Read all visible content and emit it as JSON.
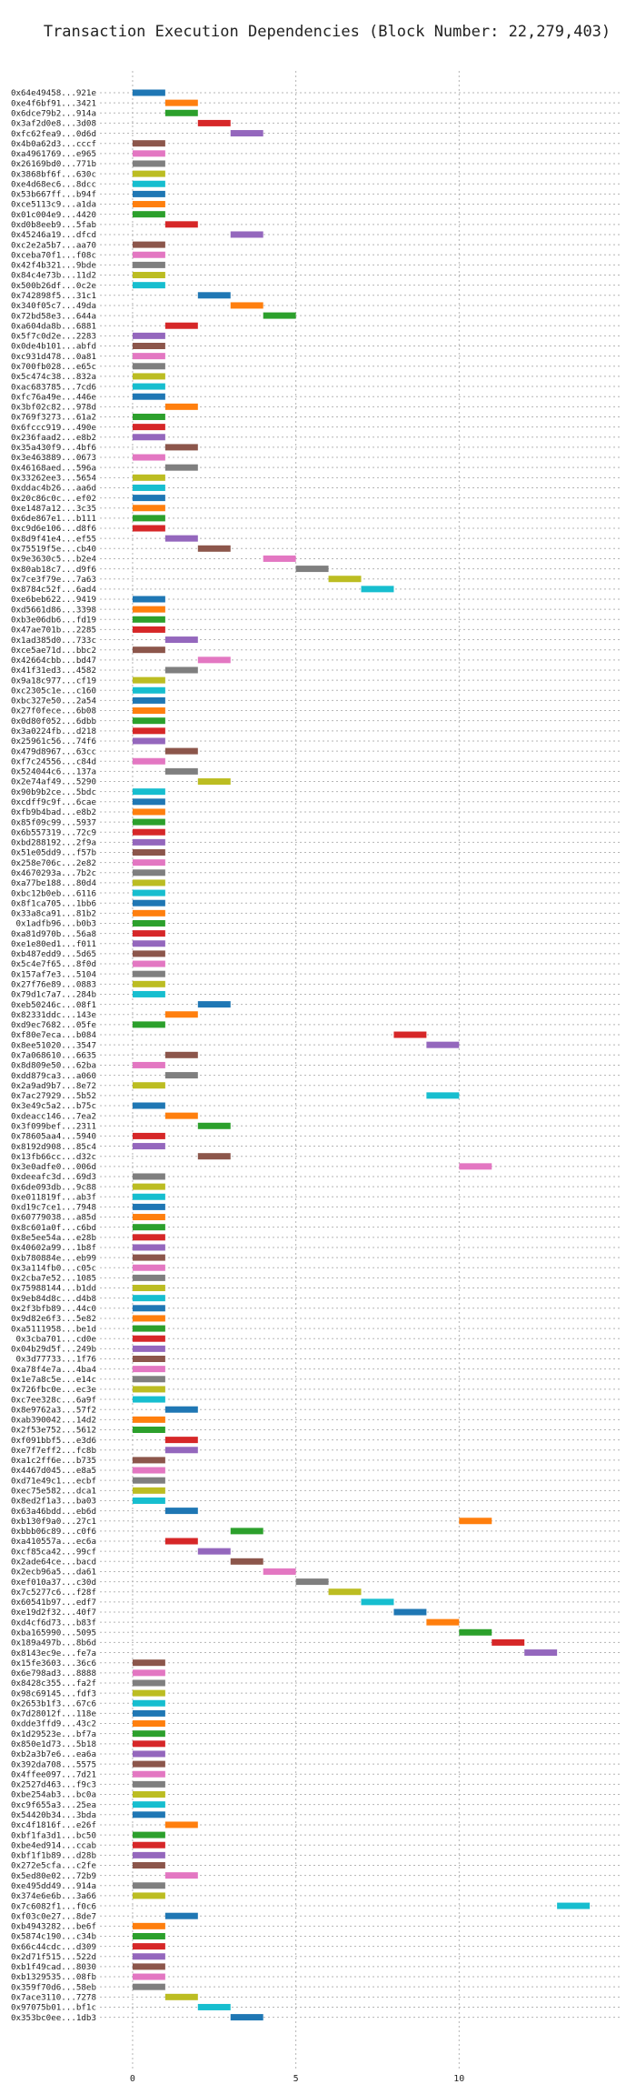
{
  "chart_data": {
    "type": "bar",
    "orientation": "horizontal",
    "title": "Transaction Execution Dependencies (Block Number: 22,279,403)",
    "xlabel": "",
    "ylabel": "",
    "xlim": [
      -1,
      15
    ],
    "xticks": [
      0,
      5,
      10
    ],
    "grid": "dotted",
    "bar_width": 1,
    "palette": [
      "#1f77b4",
      "#ff7f0e",
      "#2ca02c",
      "#d62728",
      "#9467bd",
      "#8c564b",
      "#e377c2",
      "#7f7f7f",
      "#bcbd22",
      "#17becf"
    ],
    "categories": [
      "0x64e49458...921e",
      "0xe4f6bf91...3421",
      "0x6dce79b2...914a",
      "0x3af2d0e8...3d08",
      "0xfc62fea9...0d6d",
      "0x4b0a62d3...cccf",
      "0xa4961769...e965",
      "0x26169bd0...771b",
      "0x3868bf6f...630c",
      "0xe4d68ec6...8dcc",
      "0x53b667ff...b94f",
      "0xce5113c9...a1da",
      "0x01c004e9...4420",
      "0xd0b8eeb9...5fab",
      "0x45246a19...dfcd",
      "0xc2e2a5b7...aa70",
      "0xceba70f1...f08c",
      "0x42f4b321...9bde",
      "0x84c4e73b...11d2",
      "0x500b26df...0c2e",
      "0x742898f5...31c1",
      "0x340f05c7...49da",
      "0x72bd58e3...644a",
      "0xa604da8b...6881",
      "0x5f7c0d2e...2283",
      "0x0de4b101...abfd",
      "0xc931d478...0a81",
      "0x700fb028...e65c",
      "0x5c474c38...832a",
      "0xac683785...7cd6",
      "0xfc76a49e...446e",
      "0x3bf02c82...978d",
      "0x769f3273...61a2",
      "0x6fccc919...490e",
      "0x236faad2...e8b2",
      "0x35a430f9...4bf6",
      "0x3e463889...0673",
      "0x46168aed...596a",
      "0x33262ee3...5654",
      "0xddac4b26...aa6d",
      "0x20c86c0c...ef02",
      "0xe1487a12...3c35",
      "0x6de867e1...b111",
      "0xc9d6e106...d8f6",
      "0x8d9f41e4...ef55",
      "0x75519f5e...cb40",
      "0x9e3630c5...b2e4",
      "0x80ab18c7...d9f6",
      "0x7ce3f79e...7a63",
      "0x8784c52f...6ad4",
      "0xe6beb622...9419",
      "0xd5661d86...3398",
      "0xb3e06db6...fd19",
      "0x47ae701b...2285",
      "0x1ad385d0...733c",
      "0xce5ae71d...bbc2",
      "0x42664cbb...bd47",
      "0x41f31ed3...4582",
      "0x9a18c977...cf19",
      "0xc2305c1e...c160",
      "0xbc327e50...2a54",
      "0x27f0fece...6b08",
      "0x0d80f052...6dbb",
      "0x3a0224fb...d218",
      "0x25961c56...74f6",
      "0x479d8967...63cc",
      "0xf7c24556...c84d",
      "0x524044c6...137a",
      "0x2e74af49...5290",
      "0x90b9b2ce...5bdc",
      "0xcdff9c9f...6cae",
      "0xfb9b4bad...e8b2",
      "0x85f09c99...5937",
      "0x6b557319...72c9",
      "0xbd288192...2f9a",
      "0x51e05dd9...f57b",
      "0x258e706c...2e82",
      "0x4670293a...7b2c",
      "0xa77be188...80d4",
      "0xbc12b0eb...6116",
      "0x8f1ca705...1bb6",
      "0x33a8ca91...81b2",
      "0x1adfb96...b0b3",
      "0xa81d970b...56a8",
      "0xe1e80ed1...f011",
      "0xb487edd9...5d65",
      "0x5c4e7f65...8f0d",
      "0x157af7e3...5104",
      "0x27f76e89...0883",
      "0x79d1c7a7...284b",
      "0xeb50246c...08f1",
      "0x82331ddc...143e",
      "0xd9ec7682...05fe",
      "0xf80e7eca...b084",
      "0x8ee51020...3547",
      "0x7a068610...6635",
      "0x8d809e50...62ba",
      "0xdd879ca3...a060",
      "0x2a9ad9b7...8e72",
      "0x7ac27929...5b52",
      "0x3e49c5a2...b75c",
      "0xdeacc146...7ea2",
      "0x3f099bef...2311",
      "0x78605aa4...5940",
      "0x8192d908...85c4",
      "0x13fb66cc...d32c",
      "0x3e0adfe0...006d",
      "0xdeeafc3d...69d3",
      "0x6de093db...9c88",
      "0xe011819f...ab3f",
      "0xd19c7ce1...7948",
      "0x60779038...a85d",
      "0x8c601a0f...c6bd",
      "0x8e5ee54a...e28b",
      "0x40602a99...1b8f",
      "0xb780884e...eb99",
      "0x3a114fb0...c05c",
      "0x2cba7e52...1085",
      "0x75988144...b1dd",
      "0x9eb84d8c...d4b8",
      "0x2f3bfb89...44c0",
      "0x9d82e6f3...5e82",
      "0xa5111958...be1d",
      "0x3cba701...cd0e",
      "0x04b29d5f...249b",
      "0x3d77733...1f76",
      "0xa78f4e7a...4ba4",
      "0x1e7a8c5e...e14c",
      "0x726fbc0e...ec3e",
      "0xc7ee328c...6a9f",
      "0x8e9762a3...57f2",
      "0xab390042...14d2",
      "0x2f53e752...5612",
      "0xf091bbf5...e3d6",
      "0xe7f7eff2...fc8b",
      "0xa1c2ff6e...b735",
      "0x4467d045...e8a5",
      "0xd71e49c1...ecbf",
      "0xec75e582...dca1",
      "0x8ed2f1a3...ba03",
      "0x63a46bdd...eb6d",
      "0xb130f9a0...27c1",
      "0xbbb06c89...c0f6",
      "0xa410557a...ec6a",
      "0xcf85ca42...99cf",
      "0x2ade64ce...bacd",
      "0x2ecb96a5...da61",
      "0xef010a37...c30d",
      "0x7c5277c6...f28f",
      "0x60541b97...edf7",
      "0xe19d2f32...40f7",
      "0xd4cf6d73...b83f",
      "0xba165990...5095",
      "0x189a497b...8b6d",
      "0x8143ec9e...fe7a",
      "0x15fe3603...36c6",
      "0x6e798ad3...8888",
      "0x8428c355...fa2f",
      "0x98c69145...fdf3",
      "0x2653b1f3...67c6",
      "0x7d28012f...118e",
      "0xdde3ffd9...43c2",
      "0x1d29523e...bf7a",
      "0x850e1d73...5b18",
      "0xb2a3b7e6...ea6a",
      "0x392da708...5575",
      "0x4ffee097...7d21",
      "0x2527d463...f9c3",
      "0xbe254ab3...bc0a",
      "0xc9f655a3...25ea",
      "0x54420b34...3bda",
      "0xc4f1816f...e26f",
      "0xbf1fa3d1...bc50",
      "0xbe4ed914...ccab",
      "0xbf1f1b89...d28b",
      "0x272e5cfa...c2fe",
      "0x5ed80e02...72b9",
      "0xe495dd49...914a",
      "0x374e6e6b...3a66",
      "0x7c6082f1...f0c6",
      "0xf03c0e27...8de7",
      "0xb4943282...be6f",
      "0x5874c190...c34b",
      "0x66c44cdc...d309",
      "0x2d71f515...522d",
      "0xb1f49cad...8030",
      "0xb1329535...08fb",
      "0x359f70d6...58eb",
      "0x7ace3110...7278",
      "0x97075b01...bf1c",
      "0x353bc0ee...1db3"
    ],
    "starts": [
      0,
      1,
      1,
      2,
      3,
      0,
      0,
      0,
      0,
      0,
      0,
      0,
      0,
      1,
      3,
      0,
      0,
      0,
      0,
      0,
      2,
      3,
      4,
      1,
      0,
      0,
      0,
      0,
      0,
      0,
      0,
      1,
      0,
      0,
      0,
      1,
      0,
      1,
      0,
      0,
      0,
      0,
      0,
      0,
      1,
      2,
      4,
      5,
      6,
      7,
      0,
      0,
      0,
      0,
      1,
      0,
      2,
      1,
      0,
      0,
      0,
      0,
      0,
      0,
      0,
      1,
      0,
      1,
      2,
      0,
      0,
      0,
      0,
      0,
      0,
      0,
      0,
      0,
      0,
      0,
      0,
      0,
      0,
      0,
      0,
      0,
      0,
      0,
      0,
      0,
      2,
      1,
      0,
      8,
      9,
      1,
      0,
      1,
      0,
      9,
      0,
      1,
      2,
      0,
      0,
      2,
      10,
      0,
      0,
      0,
      0,
      0,
      0,
      0,
      0,
      0,
      0,
      0,
      0,
      0,
      0,
      0,
      0,
      0,
      0,
      0,
      0,
      0,
      0,
      0,
      1,
      0,
      0,
      1,
      1,
      0,
      0,
      0,
      0,
      0,
      1,
      10,
      3,
      1,
      2,
      3,
      4,
      5,
      6,
      7,
      8,
      9,
      10,
      11,
      12,
      0,
      0,
      0,
      0,
      0,
      0,
      0,
      0,
      0,
      0,
      0,
      0,
      0,
      0,
      0,
      0,
      1,
      0,
      0,
      0,
      0,
      1,
      0,
      0,
      13,
      1,
      0,
      0,
      0,
      0,
      0,
      0,
      0,
      1,
      2,
      3
    ],
    "bar_colors": [
      0,
      1,
      2,
      3,
      4,
      5,
      6,
      7,
      8,
      9,
      0,
      1,
      2,
      3,
      4,
      5,
      6,
      7,
      8,
      9,
      0,
      1,
      2,
      3,
      4,
      5,
      6,
      7,
      8,
      9,
      0,
      1,
      2,
      3,
      4,
      5,
      6,
      7,
      8,
      9,
      0,
      1,
      2,
      3,
      4,
      5,
      6,
      7,
      8,
      9,
      0,
      1,
      2,
      3,
      4,
      5,
      6,
      7,
      8,
      9,
      0,
      1,
      2,
      3,
      4,
      5,
      6,
      7,
      8,
      9,
      0,
      1,
      2,
      3,
      4,
      5,
      6,
      7,
      8,
      9,
      0,
      1,
      2,
      3,
      4,
      5,
      6,
      7,
      8,
      9,
      0,
      1,
      2,
      3,
      4,
      5,
      6,
      7,
      8,
      9,
      0,
      1,
      2,
      3,
      4,
      5,
      6,
      7,
      8,
      9,
      0,
      1,
      2,
      3,
      4,
      5,
      6,
      7,
      8,
      9,
      0,
      1,
      2,
      3,
      4,
      5,
      6,
      7,
      8,
      9,
      0,
      1,
      2,
      3,
      4,
      5,
      6,
      7,
      8,
      9,
      0,
      1,
      2,
      3,
      4,
      5,
      6,
      7,
      8,
      9,
      0,
      1,
      2,
      3,
      4,
      5,
      6,
      7,
      8,
      9,
      0,
      1,
      2,
      3,
      4,
      5,
      6,
      7,
      8,
      9,
      0,
      1,
      2,
      3,
      4,
      5,
      6,
      7,
      8,
      9,
      0,
      1,
      2,
      3,
      4,
      5,
      6,
      7,
      8,
      9,
      0
    ]
  }
}
